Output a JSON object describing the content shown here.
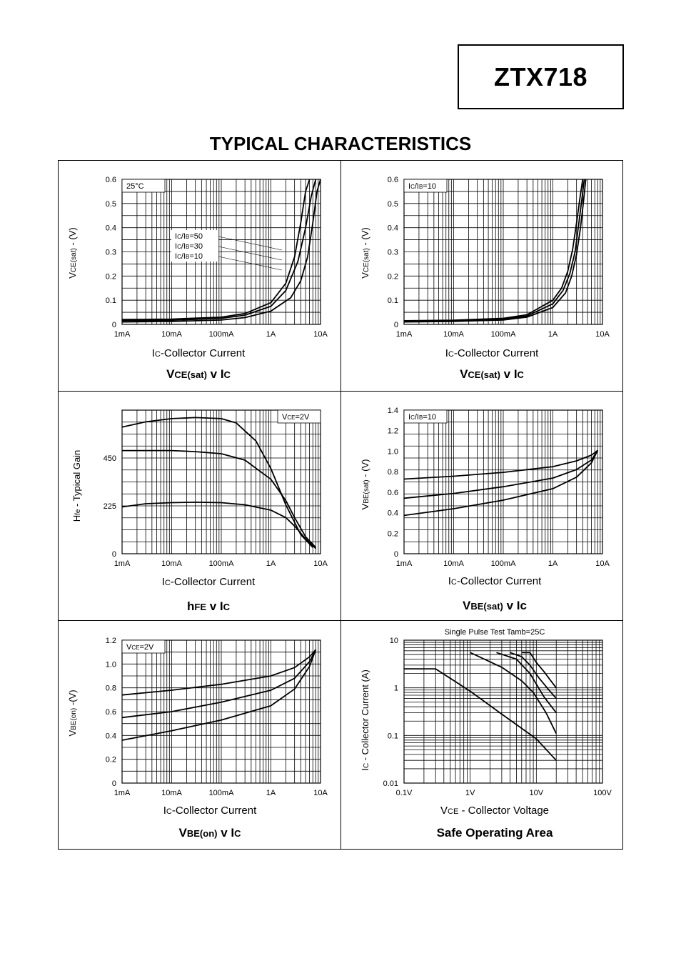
{
  "header": {
    "part_number": "ZTX718",
    "title": "TYPICAL CHARACTERISTICS"
  },
  "chart_data": [
    {
      "type": "line",
      "title": "VCE(sat) v IC",
      "title_parts": [
        "V",
        "CE(sat)",
        " v I",
        "C"
      ],
      "xlabel_parts": [
        "I",
        "C",
        "-Collector Current"
      ],
      "ylabel_parts": [
        "V",
        "CE(sat)",
        " - (V)"
      ],
      "x_scale": "log",
      "x_ticks": [
        "1mA",
        "10mA",
        "100mA",
        "1A",
        "10A"
      ],
      "xlim": [
        0.001,
        10
      ],
      "y_ticks": [
        "0",
        "0.1",
        "0.2",
        "0.3",
        "0.4",
        "0.5",
        "0.6"
      ],
      "ylim": [
        0,
        0.6
      ],
      "annotation": "25°C",
      "legend_parts": [
        [
          "I",
          "C",
          "/I",
          "B",
          "=50"
        ],
        [
          "I",
          "C",
          "/I",
          "B",
          "=30"
        ],
        [
          "I",
          "C",
          "/I",
          "B",
          "=10"
        ]
      ],
      "grid": true,
      "series": [
        {
          "x": [
            0.001,
            0.01,
            0.1,
            0.3,
            1,
            2,
            3,
            4,
            5,
            6
          ],
          "y": [
            0.02,
            0.022,
            0.03,
            0.045,
            0.09,
            0.17,
            0.28,
            0.42,
            0.55,
            0.6
          ]
        },
        {
          "x": [
            0.001,
            0.01,
            0.1,
            0.3,
            1,
            2,
            3.5,
            5,
            6.5,
            8
          ],
          "y": [
            0.015,
            0.017,
            0.025,
            0.038,
            0.075,
            0.14,
            0.26,
            0.4,
            0.53,
            0.6
          ]
        },
        {
          "x": [
            0.001,
            0.01,
            0.1,
            0.3,
            1,
            2.5,
            4,
            5.5,
            7,
            8.5,
            10
          ],
          "y": [
            0.01,
            0.012,
            0.018,
            0.028,
            0.055,
            0.11,
            0.18,
            0.28,
            0.42,
            0.55,
            0.6
          ]
        }
      ]
    },
    {
      "type": "line",
      "title": "VCE(sat) v IC",
      "title_parts": [
        "V",
        "CE(sat)",
        " v I",
        "C"
      ],
      "xlabel_parts": [
        "I",
        "C",
        "-Collector Current"
      ],
      "ylabel_parts": [
        "V",
        "CE(sat)",
        " - (V)"
      ],
      "x_scale": "log",
      "x_ticks": [
        "1mA",
        "10mA",
        "100mA",
        "1A",
        "10A"
      ],
      "xlim": [
        0.001,
        10
      ],
      "y_ticks": [
        "0",
        "0.1",
        "0.2",
        "0.3",
        "0.4",
        "0.5",
        "0.6"
      ],
      "ylim": [
        0,
        0.6
      ],
      "annotation_parts": [
        "I",
        "C",
        "/I",
        "B",
        "=10"
      ],
      "grid": true,
      "series": [
        {
          "x": [
            0.001,
            0.01,
            0.1,
            0.3,
            1,
            1.5,
            2,
            2.5,
            3,
            3.5,
            4
          ],
          "y": [
            0.015,
            0.017,
            0.025,
            0.04,
            0.1,
            0.15,
            0.22,
            0.31,
            0.42,
            0.52,
            0.6
          ]
        },
        {
          "x": [
            0.001,
            0.01,
            0.1,
            0.3,
            1,
            1.6,
            2.2,
            2.8,
            3.3,
            3.8,
            4.3
          ],
          "y": [
            0.012,
            0.014,
            0.021,
            0.035,
            0.085,
            0.14,
            0.21,
            0.3,
            0.41,
            0.51,
            0.6
          ]
        },
        {
          "x": [
            0.001,
            0.01,
            0.1,
            0.3,
            1,
            1.8,
            2.4,
            3,
            3.6,
            4.1,
            4.6
          ],
          "y": [
            0.01,
            0.012,
            0.018,
            0.03,
            0.07,
            0.13,
            0.2,
            0.29,
            0.4,
            0.5,
            0.6
          ]
        }
      ]
    },
    {
      "type": "line",
      "title": "hFE v IC",
      "title_parts": [
        "h",
        "FE",
        " v I",
        "C"
      ],
      "xlabel_parts": [
        "I",
        "C",
        "-Collector Current"
      ],
      "ylabel_parts": [
        "H",
        "fe",
        " - Typical  Gain"
      ],
      "x_scale": "log",
      "x_ticks": [
        "1mA",
        "10mA",
        "100mA",
        "1A",
        "10A"
      ],
      "xlim": [
        0.001,
        10
      ],
      "y_ticks": [
        "0",
        "225",
        "450"
      ],
      "y_tick_values": [
        0,
        225,
        450
      ],
      "ylim": [
        0,
        675
      ],
      "annotation_parts": [
        "V",
        "CE",
        "=2V"
      ],
      "grid": true,
      "series": [
        {
          "x": [
            0.001,
            0.003,
            0.01,
            0.03,
            0.1,
            0.2,
            0.5,
            1,
            2,
            4,
            7
          ],
          "y": [
            595,
            620,
            635,
            640,
            635,
            615,
            530,
            400,
            230,
            90,
            30
          ]
        },
        {
          "x": [
            0.001,
            0.01,
            0.03,
            0.1,
            0.3,
            1,
            2,
            3,
            5,
            8
          ],
          "y": [
            485,
            485,
            480,
            470,
            440,
            350,
            250,
            170,
            80,
            30
          ]
        },
        {
          "x": [
            0.001,
            0.003,
            0.01,
            0.03,
            0.1,
            0.3,
            1,
            2,
            3,
            5,
            8
          ],
          "y": [
            220,
            235,
            240,
            242,
            240,
            230,
            205,
            170,
            130,
            70,
            25
          ]
        }
      ]
    },
    {
      "type": "line",
      "title": "VBE(sat) v Ic",
      "title_parts": [
        "V",
        "BE(sat)",
        " v Ic",
        ""
      ],
      "xlabel_parts": [
        "I",
        "C",
        "-Collector Current"
      ],
      "ylabel_parts": [
        "V",
        "BE(sat)",
        " - (V)"
      ],
      "x_scale": "log",
      "x_ticks": [
        "1mA",
        "10mA",
        "100mA",
        "1A",
        "10A"
      ],
      "xlim": [
        0.001,
        10
      ],
      "y_ticks": [
        "0",
        "0.2",
        "0.4",
        "0.6",
        "0.8",
        "1.0",
        "1.2",
        "1.4"
      ],
      "ylim": [
        0,
        1.5
      ],
      "annotation_parts": [
        "I",
        "C",
        "/I",
        "B",
        "=10"
      ],
      "grid": true,
      "series": [
        {
          "x": [
            0.001,
            0.01,
            0.1,
            1,
            3,
            6,
            8
          ],
          "y": [
            0.78,
            0.81,
            0.85,
            0.91,
            0.97,
            1.03,
            1.08
          ]
        },
        {
          "x": [
            0.001,
            0.01,
            0.1,
            1,
            3,
            6,
            8
          ],
          "y": [
            0.58,
            0.63,
            0.7,
            0.79,
            0.88,
            0.98,
            1.08
          ]
        },
        {
          "x": [
            0.001,
            0.01,
            0.1,
            1,
            3,
            6,
            8
          ],
          "y": [
            0.4,
            0.47,
            0.56,
            0.68,
            0.8,
            0.95,
            1.08
          ]
        }
      ]
    },
    {
      "type": "line",
      "title": "VBE(on) v IC",
      "title_parts": [
        "V",
        "BE(on)",
        " v I",
        "C"
      ],
      "xlabel_parts": [
        "I",
        "C",
        "-Collector Current"
      ],
      "ylabel_parts": [
        "V",
        "BE(on)",
        " -(V)"
      ],
      "x_scale": "log",
      "x_ticks": [
        "1mA",
        "10mA",
        "100mA",
        "1A",
        "10A"
      ],
      "xlim": [
        0.001,
        10
      ],
      "y_ticks": [
        "0",
        "0.2",
        "0.4",
        "0.6",
        "0.8",
        "1.0",
        "1.2"
      ],
      "ylim": [
        0,
        1.2
      ],
      "annotation_parts": [
        "V",
        "CE",
        "=2V"
      ],
      "grid": true,
      "series": [
        {
          "x": [
            0.001,
            0.01,
            0.1,
            1,
            3,
            6,
            8
          ],
          "y": [
            0.74,
            0.78,
            0.83,
            0.9,
            0.97,
            1.06,
            1.12
          ]
        },
        {
          "x": [
            0.001,
            0.01,
            0.1,
            1,
            3,
            6,
            8
          ],
          "y": [
            0.55,
            0.6,
            0.68,
            0.78,
            0.88,
            1.02,
            1.12
          ]
        },
        {
          "x": [
            0.001,
            0.01,
            0.1,
            1,
            3,
            6,
            8
          ],
          "y": [
            0.36,
            0.44,
            0.53,
            0.65,
            0.79,
            0.98,
            1.12
          ]
        }
      ]
    },
    {
      "type": "line",
      "title": "Safe Operating Area",
      "title_parts": [
        "Safe Operating Area",
        "",
        "",
        ""
      ],
      "xlabel_parts": [
        "V",
        "CE",
        " - Collector Voltage"
      ],
      "ylabel_parts": [
        "I",
        "C",
        " - Collector Current (A)"
      ],
      "x_scale": "log",
      "x_ticks": [
        "0.1V",
        "1V",
        "10V",
        "100V"
      ],
      "xlim": [
        0.1,
        100
      ],
      "y_scale": "log",
      "y_ticks": [
        "0.01",
        "0.1",
        "1",
        "10"
      ],
      "ylim": [
        0.01,
        10
      ],
      "annotation": "Single Pulse Test Tamb=25C",
      "grid": true,
      "series": [
        {
          "x": [
            0.1,
            0.3,
            1,
            3,
            10,
            20
          ],
          "y": [
            2.5,
            2.5,
            0.85,
            0.28,
            0.085,
            0.03
          ]
        },
        {
          "x": [
            1,
            3,
            6,
            9,
            14,
            20
          ],
          "y": [
            5.5,
            2.7,
            1.4,
            0.8,
            0.3,
            0.11
          ]
        },
        {
          "x": [
            2.5,
            5,
            8,
            10,
            13,
            20
          ],
          "y": [
            5.5,
            4,
            2,
            1.2,
            0.65,
            0.3
          ]
        },
        {
          "x": [
            4,
            6,
            8,
            11,
            15,
            20
          ],
          "y": [
            5.5,
            4.5,
            3,
            1.6,
            0.95,
            0.6
          ]
        },
        {
          "x": [
            6,
            8,
            10,
            13,
            16,
            20
          ],
          "y": [
            5.5,
            5.5,
            3.4,
            2.2,
            1.5,
            1.0
          ]
        }
      ]
    }
  ]
}
